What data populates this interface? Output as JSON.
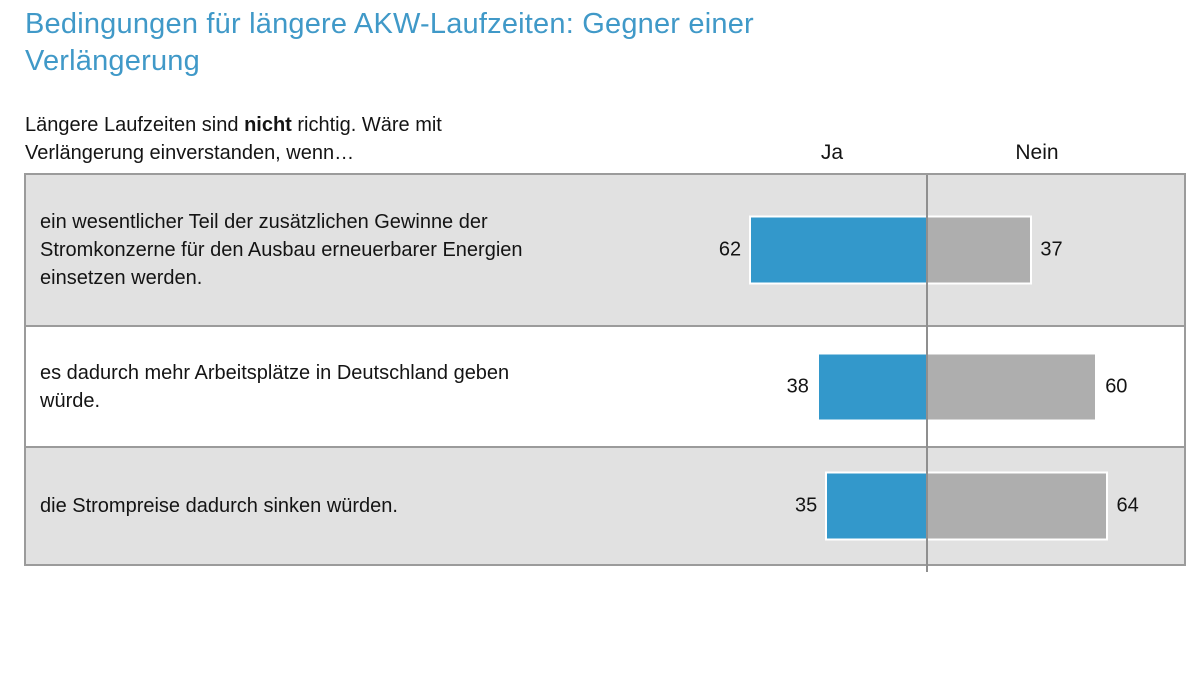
{
  "title": {
    "full": "Bedingungen für längere AKW-Laufzeiten: Gegner einer Verlängerung",
    "line1": "Bedingungen für längere AKW-Laufzeiten: Gegner einer",
    "line2": "Verlängerung"
  },
  "subtitle": {
    "pre": "Längere Laufzeiten sind ",
    "bold": "nicht",
    "post": " richtig. Wäre mit Verlängerung einverstanden, wenn…"
  },
  "chart_data": {
    "type": "bar",
    "orientation": "horizontal-diverging",
    "title": "Bedingungen für längere AKW-Laufzeiten: Gegner einer Verlängerung",
    "subtitle": "Längere Laufzeiten sind nicht richtig. Wäre mit Verlängerung einverstanden, wenn…",
    "unit": "percent",
    "categories": [
      "ein wesentlicher Teil der zusätzlichen Gewinne der Stromkonzerne für den Ausbau erneuerbarer Energien einsetzen werden.",
      "es dadurch mehr Arbeitsplätze in Deutschland geben würde.",
      "die Strompreise dadurch sinken würden."
    ],
    "series": [
      {
        "name": "Ja",
        "values": [
          62,
          38,
          35
        ]
      },
      {
        "name": "Nein",
        "values": [
          37,
          60,
          64
        ]
      }
    ],
    "value_labels_shown": true,
    "legend_position": "column-headers",
    "grid": "single-center-divider"
  },
  "colors": {
    "title_text": "#4099c8",
    "ja_bar": "#3398cb",
    "nein_bar": "#aeaeae",
    "row_alt_bg": "#e1e1e1",
    "row_bg": "#ffffff",
    "grid_line": "#8f8f8f",
    "table_border": "#9b9b9b",
    "body_text": "#141414"
  }
}
